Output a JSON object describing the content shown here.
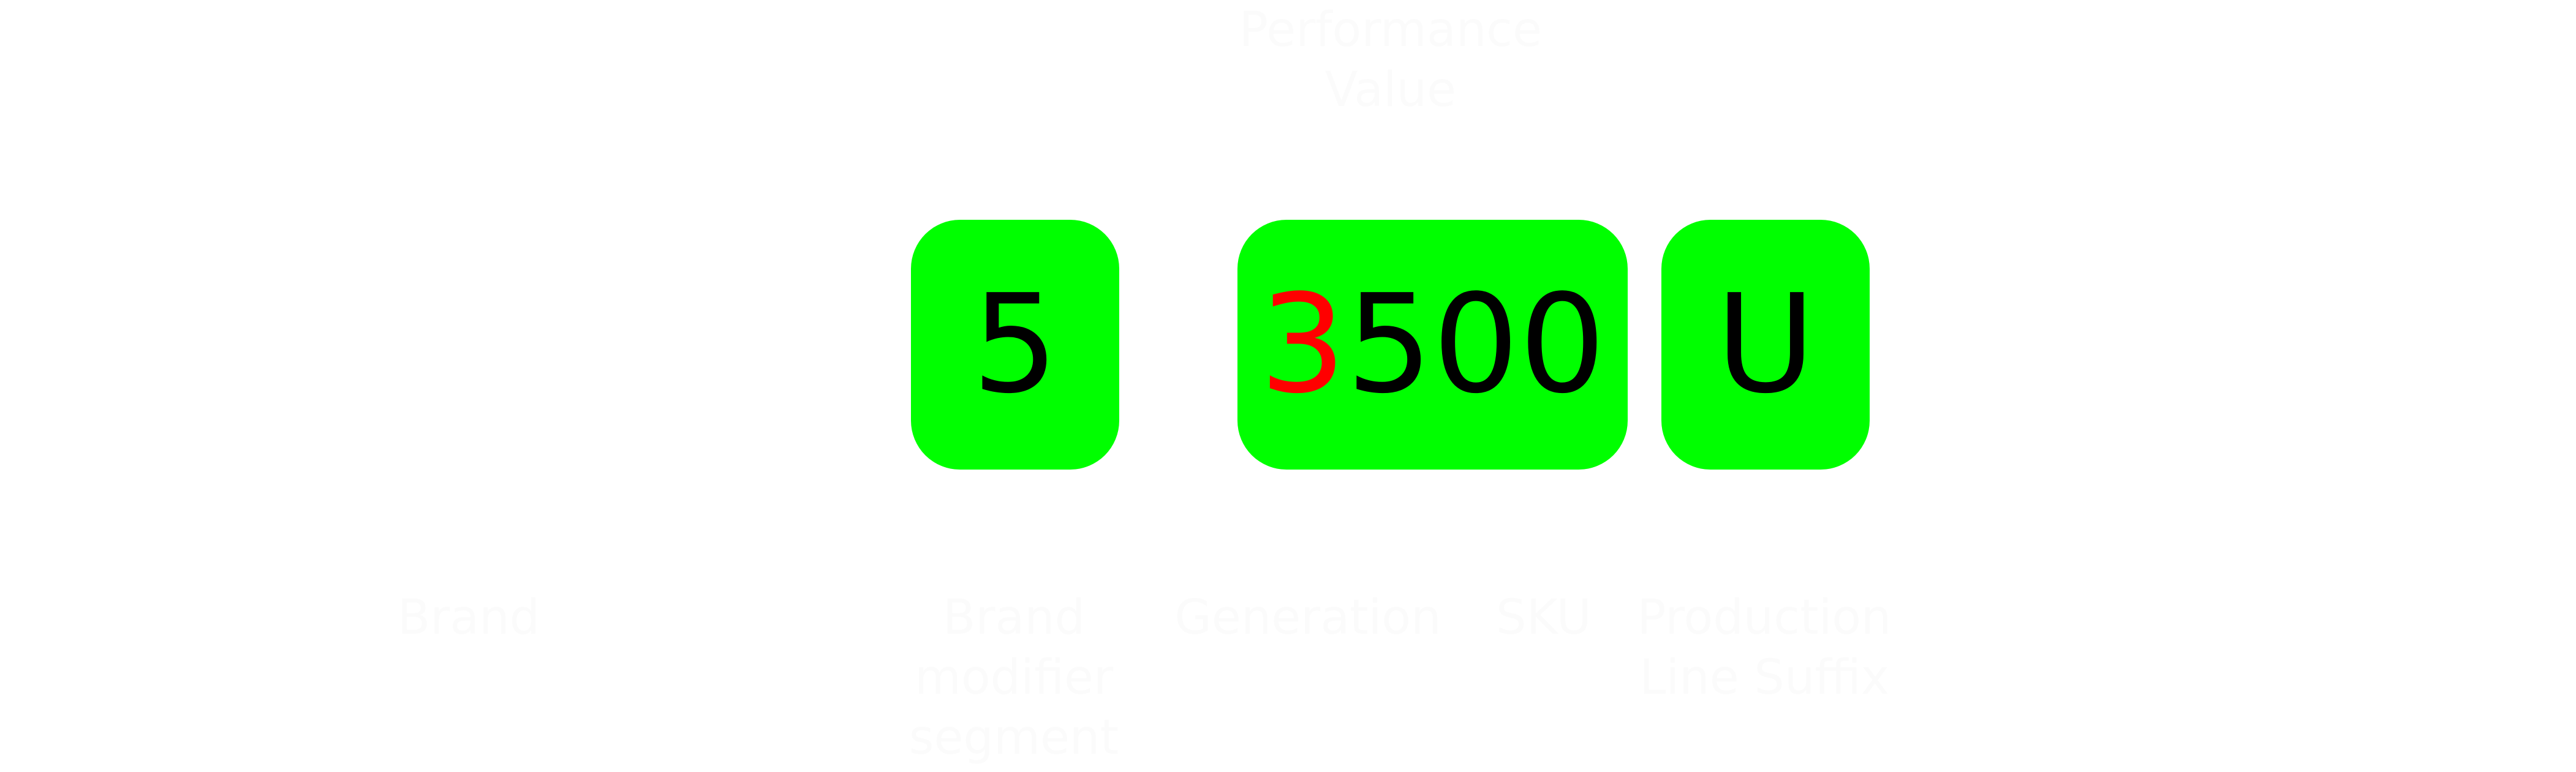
{
  "labels": {
    "performance_value": "Performance Value",
    "brand": "Brand",
    "brand_modifier_segment": "Brand modifier segment",
    "generation": "Generation",
    "sku": "SKU",
    "production_line_suffix": "Production Line Suffix"
  },
  "boxes": {
    "brand_modifier": "5",
    "generation_digit": "3",
    "sku_digits": "500",
    "suffix": "U"
  },
  "colors": {
    "box_background": "#00ff00",
    "highlight_digit": "#ff0000",
    "text": "#000000",
    "faint_label": "#fbfbfb"
  }
}
